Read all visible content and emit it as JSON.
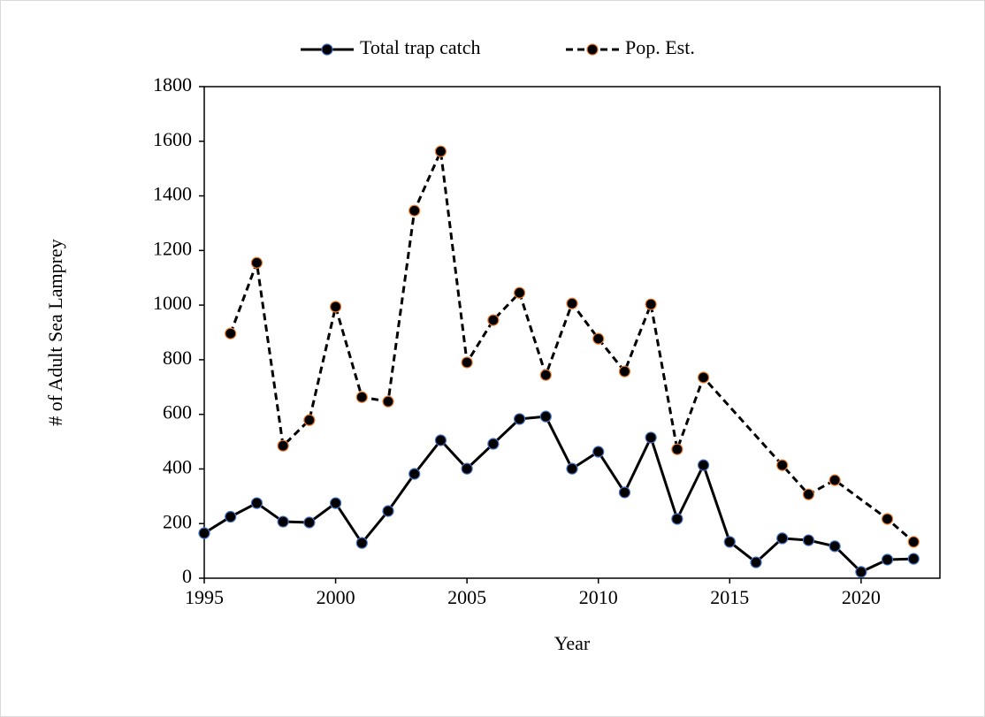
{
  "chart_data": {
    "type": "line",
    "x_label": "Year",
    "y_label": "# of Adult Sea Lamprey",
    "series": [
      {
        "name": "Total trap catch",
        "color": "#000000",
        "marker_edge": "#4472c4",
        "dash": false,
        "x": [
          1995,
          1996,
          1997,
          1998,
          1999,
          2000,
          2001,
          2002,
          2003,
          2004,
          2005,
          2006,
          2007,
          2008,
          2009,
          2010,
          2011,
          2012,
          2013,
          2014,
          2015,
          2016,
          2017,
          2018,
          2019,
          2020,
          2021,
          2022
        ],
        "values": [
          165,
          225,
          275,
          207,
          204,
          275,
          129,
          246,
          382,
          505,
          401,
          492,
          583,
          592,
          401,
          463,
          314,
          515,
          217,
          414,
          133,
          58,
          146,
          139,
          117,
          23,
          68,
          71
        ]
      },
      {
        "name": "Pop. Est.",
        "color": "#000000",
        "marker_edge": "#ed7d31",
        "dash": true,
        "x": [
          1996,
          1997,
          1998,
          1999,
          2000,
          2001,
          2002,
          2003,
          2004,
          2005,
          2006,
          2007,
          2008,
          2009,
          2010,
          2011,
          2012,
          2013,
          2014,
          2017,
          2018,
          2019,
          2021,
          2022
        ],
        "values": [
          896,
          1155,
          485,
          579,
          994,
          663,
          647,
          1346,
          1563,
          790,
          945,
          1045,
          744,
          1006,
          877,
          757,
          1003,
          472,
          735,
          414,
          307,
          359,
          217,
          133
        ]
      }
    ],
    "xlim": [
      1995,
      2023
    ],
    "xticks": [
      1995,
      2000,
      2005,
      2010,
      2015,
      2020
    ],
    "ylim": [
      0,
      1800
    ],
    "yticks": [
      0,
      200,
      400,
      600,
      800,
      1000,
      1200,
      1400,
      1600,
      1800
    ],
    "legend": "top"
  }
}
